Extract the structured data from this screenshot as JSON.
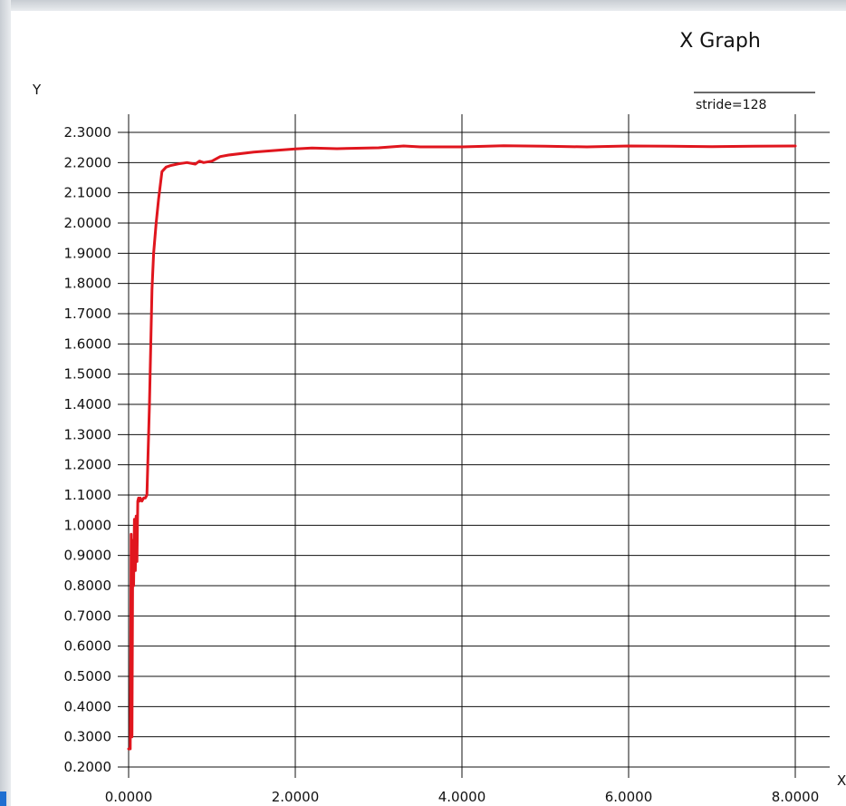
{
  "chart_data": {
    "type": "line",
    "title": "X Graph",
    "xlabel": "X",
    "ylabel": "Y",
    "xlim": [
      0.0,
      8.0
    ],
    "ylim": [
      0.2,
      2.3
    ],
    "x_ticks": [
      "0.0000",
      "2.0000",
      "4.0000",
      "6.0000",
      "8.0000"
    ],
    "x_tick_values": [
      0,
      2,
      4,
      6,
      8
    ],
    "y_ticks": [
      "2.3000",
      "2.2000",
      "2.1000",
      "2.0000",
      "1.9000",
      "1.8000",
      "1.7000",
      "1.6000",
      "1.5000",
      "1.4000",
      "1.3000",
      "1.2000",
      "1.1000",
      "1.0000",
      "0.9000",
      "0.8000",
      "0.7000",
      "0.6000",
      "0.5000",
      "0.4000",
      "0.3000",
      "0.2000"
    ],
    "y_tick_values": [
      2.3,
      2.2,
      2.1,
      2.0,
      1.9,
      1.8,
      1.7,
      1.6,
      1.5,
      1.4,
      1.3,
      1.2,
      1.1,
      1.0,
      0.9,
      0.8,
      0.7,
      0.6,
      0.5,
      0.4,
      0.3,
      0.2
    ],
    "grid": true,
    "legend_position": "top-right",
    "series": [
      {
        "name": "stride=128",
        "color": "#e0161e",
        "x": [
          0.0,
          0.02,
          0.03,
          0.04,
          0.05,
          0.06,
          0.07,
          0.08,
          0.09,
          0.1,
          0.11,
          0.12,
          0.13,
          0.14,
          0.16,
          0.18,
          0.2,
          0.22,
          0.25,
          0.28,
          0.3,
          0.33,
          0.36,
          0.4,
          0.45,
          0.5,
          0.6,
          0.7,
          0.8,
          0.85,
          0.9,
          1.0,
          1.1,
          1.2,
          1.5,
          2.0,
          2.2,
          2.5,
          3.0,
          3.3,
          3.5,
          4.0,
          4.5,
          5.0,
          5.5,
          6.0,
          6.5,
          7.0,
          7.5,
          8.0
        ],
        "y": [
          0.26,
          0.26,
          0.97,
          0.3,
          0.95,
          0.8,
          1.02,
          0.85,
          1.03,
          0.88,
          1.08,
          1.09,
          1.08,
          1.09,
          1.08,
          1.09,
          1.09,
          1.1,
          1.4,
          1.78,
          1.9,
          2.0,
          2.08,
          2.17,
          2.185,
          2.19,
          2.196,
          2.2,
          2.195,
          2.205,
          2.2,
          2.205,
          2.22,
          2.225,
          2.235,
          2.245,
          2.248,
          2.246,
          2.249,
          2.255,
          2.252,
          2.252,
          2.256,
          2.254,
          2.252,
          2.255,
          2.254,
          2.253,
          2.254,
          2.255
        ]
      }
    ]
  }
}
